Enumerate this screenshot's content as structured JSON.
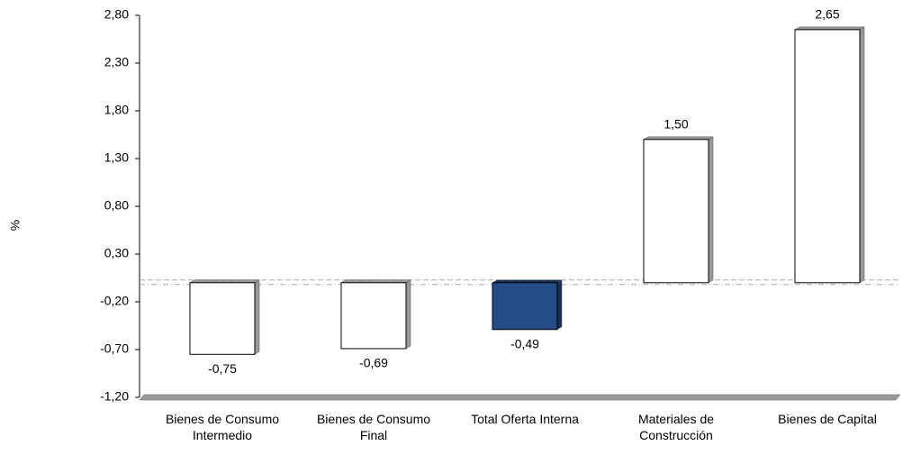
{
  "chart_data": {
    "type": "bar",
    "categories": [
      "Bienes de Consumo Intermedio",
      "Bienes de Consumo Final",
      "Total Oferta Interna",
      "Materiales de Construcción",
      "Bienes de Capital"
    ],
    "values": [
      -0.75,
      -0.69,
      -0.49,
      1.5,
      2.65
    ],
    "value_labels": [
      "-0,75",
      "-0,69",
      "-0,49",
      "1,50",
      "2,65"
    ],
    "colors": [
      "#ffffff",
      "#ffffff",
      "#234b84",
      "#ffffff",
      "#ffffff"
    ],
    "y_label": "%",
    "ylim": [
      -1.2,
      2.8
    ],
    "yticks": [
      {
        "value": -1.2,
        "label": "-1,20"
      },
      {
        "value": -0.7,
        "label": "-0,70"
      },
      {
        "value": -0.2,
        "label": "-0,20"
      },
      {
        "value": 0.3,
        "label": "0,30"
      },
      {
        "value": 0.8,
        "label": "0,80"
      },
      {
        "value": 1.3,
        "label": "1,30"
      },
      {
        "value": 1.8,
        "label": "1,80"
      },
      {
        "value": 2.3,
        "label": "2,30"
      },
      {
        "value": 2.8,
        "label": "2,80"
      }
    ],
    "grid": false
  }
}
